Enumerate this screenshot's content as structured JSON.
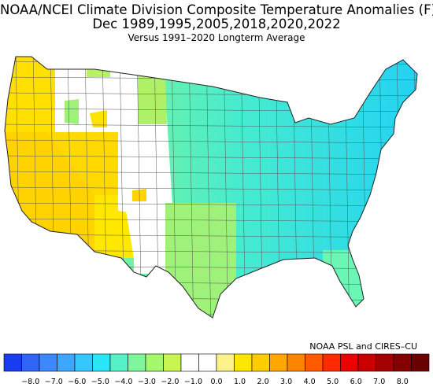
{
  "title": {
    "line1": "NOAA/NCEI Climate Division Composite Temperature Anomalies (F)",
    "line2": "Dec    1989,1995,2005,2018,2020,2022",
    "line3": "Versus 1991–2020 Longterm Average"
  },
  "credit": "NOAA PSL and CIRES–CU",
  "legend": {
    "labels": [
      "−8.0",
      "−7.0",
      "−6.0",
      "−5.0",
      "−4.0",
      "−3.0",
      "−2.0",
      "−1.0",
      "0.0",
      "1.0",
      "2.0",
      "3.0",
      "4.0",
      "5.0",
      "6.0",
      "7.0",
      "8.0"
    ],
    "colors": [
      "#1a3cf0",
      "#2f66f8",
      "#3d87ff",
      "#3fa6ff",
      "#33c8ff",
      "#28e6f6",
      "#55f2c8",
      "#7ef79a",
      "#a4f86e",
      "#c8f550",
      "#ffffff",
      "#ffffff",
      "#fff28a",
      "#ffe600",
      "#ffcc00",
      "#ffa800",
      "#ff8400",
      "#ff5a00",
      "#ff2a00",
      "#ee0000",
      "#c80000",
      "#a30000",
      "#850000",
      "#6b0000"
    ]
  },
  "map": {
    "regions": [
      {
        "name": "pacific-coast",
        "color": "#ffe000"
      },
      {
        "name": "california",
        "color": "#ffd200"
      },
      {
        "name": "nevada-utah-basin",
        "color": "#ffd900"
      },
      {
        "name": "arizona",
        "color": "#ffe800"
      },
      {
        "name": "idaho-montana-west",
        "color": "#ffffff"
      },
      {
        "name": "wyoming-colorado",
        "color": "#ffffff"
      },
      {
        "name": "northern-plains",
        "color": "#a6f272"
      },
      {
        "name": "central-plains",
        "color": "#8df48a"
      },
      {
        "name": "southern-plains",
        "color": "#9ef27a"
      },
      {
        "name": "midwest",
        "color": "#4ff0c2"
      },
      {
        "name": "great-lakes",
        "color": "#33e6e6"
      },
      {
        "name": "southeast",
        "color": "#5ef2c2"
      },
      {
        "name": "ohio-valley-mid-atlantic",
        "color": "#2ee0ee"
      },
      {
        "name": "northeast",
        "color": "#22d2f4"
      },
      {
        "name": "florida",
        "color": "#6af6b4"
      },
      {
        "name": "new-mexico-west",
        "color": "#ffffff"
      }
    ]
  }
}
